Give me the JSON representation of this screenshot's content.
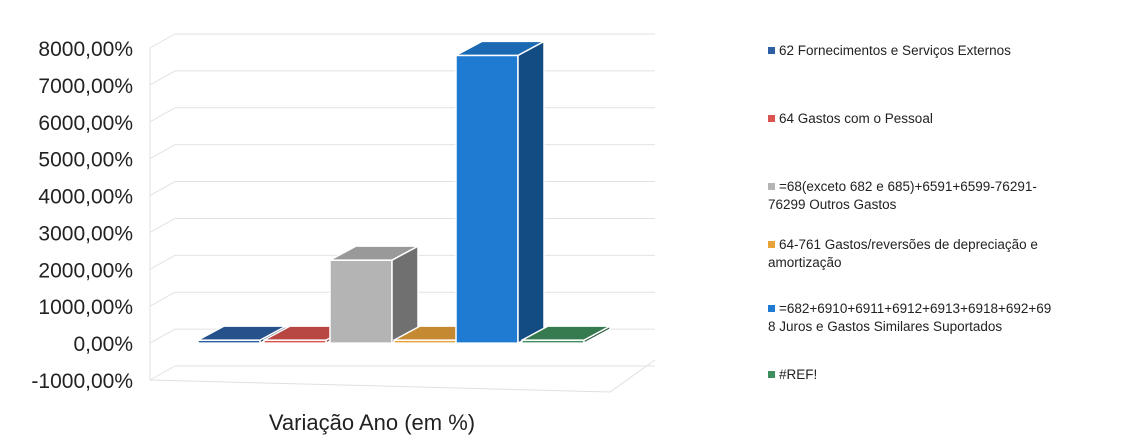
{
  "chart_data": {
    "type": "bar",
    "categories": [
      "Variação Ano (em %)"
    ],
    "y_tick_labels": [
      "8000,00%",
      "7000,00%",
      "6000,00%",
      "5000,00%",
      "4000,00%",
      "3000,00%",
      "2000,00%",
      "1000,00%",
      "0,00%",
      "-1000,00%"
    ],
    "ylim": [
      -1000,
      8000
    ],
    "grid": true,
    "legend_position": "right",
    "series": [
      {
        "name": "62 Fornecimentos e Serviços Externos",
        "values": [
          0
        ],
        "color": "#2e5fa3"
      },
      {
        "name": "64 Gastos com o Pessoal",
        "values": [
          0
        ],
        "color": "#d9534f"
      },
      {
        "name": "=68(exceto 682 e 685)+6591+6599-76291-76299 Outros Gastos",
        "values": [
          2250
        ],
        "color": "#b4b4b4"
      },
      {
        "name": "64-761 Gastos/reversões de depreciação e amortização",
        "values": [
          0
        ],
        "color": "#e8a23a"
      },
      {
        "name": "=682+6910+6911+6912+6913+6918+692+698 Juros e Gastos Similares Suportados",
        "values": [
          7800
        ],
        "color": "#1f7bd1"
      },
      {
        "name": "#REF!",
        "values": [
          0
        ],
        "color": "#3f8f5e"
      }
    ]
  },
  "legend": {
    "items": [
      {
        "lines": [
          "62 Fornecimentos e Serviços Externos"
        ]
      },
      {
        "lines": [
          "64 Gastos com o Pessoal"
        ]
      },
      {
        "lines": [
          "=68(exceto 682 e 685)+6591+6599-76291-",
          "76299 Outros Gastos"
        ]
      },
      {
        "lines": [
          "64-761 Gastos/reversões de depreciação e",
          "amortização"
        ]
      },
      {
        "lines": [
          "=682+6910+6911+6912+6913+6918+692+69",
          "8 Juros e Gastos Similares Suportados"
        ]
      },
      {
        "lines": [
          "#REF!"
        ]
      }
    ]
  }
}
